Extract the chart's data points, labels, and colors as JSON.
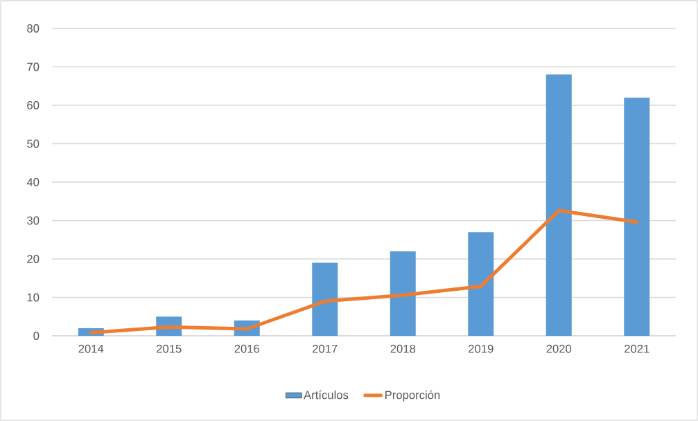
{
  "chart_data": {
    "type": "bar",
    "categories": [
      "2014",
      "2015",
      "2016",
      "2017",
      "2018",
      "2019",
      "2020",
      "2021"
    ],
    "series": [
      {
        "name": "Artículos",
        "color": "#5b9bd5",
        "values": [
          2,
          5,
          4,
          19,
          22,
          27,
          68,
          62
        ]
      },
      {
        "name": "Proporción",
        "type": "line",
        "color": "#ed7d31",
        "values": [
          0.8,
          2.3,
          1.8,
          9.0,
          10.6,
          12.9,
          32.6,
          29.6
        ],
        "marker": "none",
        "line_style": "solid"
      }
    ],
    "ylim": [
      0,
      80
    ],
    "yticks": [
      0,
      10,
      20,
      30,
      40,
      50,
      60,
      70,
      80
    ],
    "grid": "y",
    "legend": "bottom"
  }
}
